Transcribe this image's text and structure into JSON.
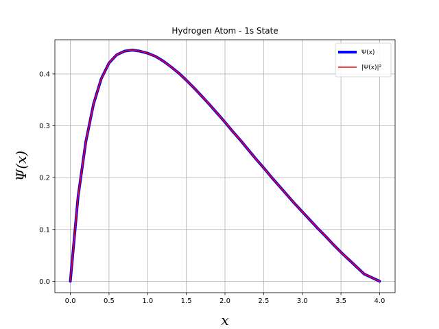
{
  "chart_data": {
    "type": "line",
    "title": "Hydrogen Atom - 1s State",
    "xlabel": "x",
    "ylabel": "Ψ(x)",
    "xlim": [
      -0.2,
      4.2
    ],
    "ylim": [
      -0.022,
      0.466
    ],
    "xticks": [
      0.0,
      0.5,
      1.0,
      1.5,
      2.0,
      2.5,
      3.0,
      3.5,
      4.0
    ],
    "xtick_labels": [
      "0.0",
      "0.5",
      "1.0",
      "1.5",
      "2.0",
      "2.5",
      "3.0",
      "3.5",
      "4.0"
    ],
    "yticks": [
      0.0,
      0.1,
      0.2,
      0.3,
      0.4
    ],
    "ytick_labels": [
      "0.0",
      "0.1",
      "0.2",
      "0.3",
      "0.4"
    ],
    "grid": true,
    "legend_position": "top-right",
    "x": [
      0.0,
      0.1,
      0.2,
      0.3,
      0.4,
      0.5,
      0.6,
      0.7,
      0.8,
      0.9,
      1.0,
      1.1,
      1.2,
      1.3,
      1.4,
      1.5,
      1.6,
      1.7,
      1.8,
      1.9,
      2.0,
      2.1,
      2.2,
      2.3,
      2.4,
      2.5,
      2.6,
      2.7,
      2.8,
      2.9,
      3.0,
      3.1,
      3.2,
      3.3,
      3.4,
      3.5,
      3.6,
      3.7,
      3.8,
      3.9,
      4.0
    ],
    "series": [
      {
        "name": "Ψ(x)",
        "color": "#0000ff",
        "values": [
          0.0,
          0.163,
          0.269,
          0.342,
          0.391,
          0.421,
          0.437,
          0.444,
          0.446,
          0.444,
          0.44,
          0.434,
          0.425,
          0.414,
          0.402,
          0.388,
          0.373,
          0.357,
          0.341,
          0.324,
          0.307,
          0.289,
          0.272,
          0.254,
          0.236,
          0.219,
          0.201,
          0.184,
          0.167,
          0.15,
          0.134,
          0.118,
          0.102,
          0.087,
          0.071,
          0.056,
          0.042,
          0.028,
          0.014,
          0.007,
          0.0
        ]
      },
      {
        "name": "|Ψ(x)|²",
        "color": "#ff0000",
        "values": [
          0.0,
          0.163,
          0.269,
          0.342,
          0.391,
          0.421,
          0.437,
          0.444,
          0.446,
          0.444,
          0.44,
          0.434,
          0.425,
          0.414,
          0.402,
          0.388,
          0.373,
          0.357,
          0.341,
          0.324,
          0.307,
          0.289,
          0.272,
          0.254,
          0.236,
          0.219,
          0.201,
          0.184,
          0.167,
          0.15,
          0.134,
          0.118,
          0.102,
          0.087,
          0.071,
          0.056,
          0.042,
          0.028,
          0.014,
          0.007,
          0.0
        ]
      }
    ]
  }
}
